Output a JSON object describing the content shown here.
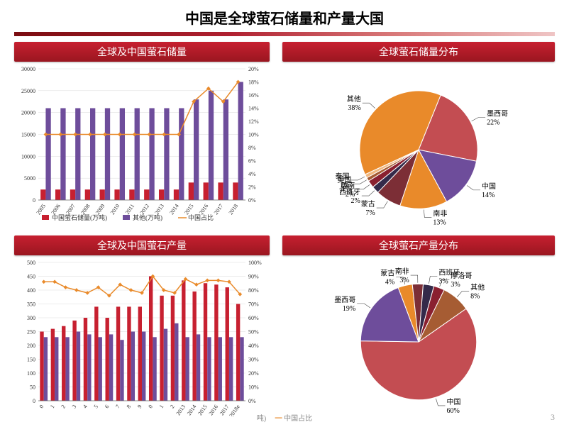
{
  "page_title": "中国是全球萤石储量和产量大国",
  "page_number": "3",
  "footer_legend_tail": "吨)",
  "footer_legend_line": "中国占比",
  "panels": {
    "reserves_bar": {
      "title": "全球及中国萤石储量",
      "type": "bar+line",
      "years": [
        "2005",
        "2006",
        "2007",
        "2008",
        "2009",
        "2010",
        "2011",
        "2012",
        "2013",
        "2014",
        "2015",
        "2016",
        "2017",
        "2018"
      ],
      "china": [
        2400,
        2400,
        2400,
        2400,
        2400,
        2400,
        2400,
        2400,
        2400,
        2400,
        4000,
        4000,
        4000,
        4000
      ],
      "other": [
        21000,
        21000,
        21000,
        21000,
        21000,
        21000,
        21000,
        21000,
        21000,
        21000,
        23000,
        25000,
        23000,
        27000
      ],
      "ratio_pct": [
        10,
        10,
        10,
        10,
        10,
        10,
        10,
        10,
        10,
        10,
        15,
        17,
        15,
        18
      ],
      "y_left": {
        "min": 0,
        "max": 30000,
        "step": 5000
      },
      "y_right": {
        "min": 0,
        "max": 20,
        "step": 2,
        "suffix": "%"
      },
      "colors": {
        "china": "#c72030",
        "other": "#6e4d9b",
        "ratio": "#e98a2a",
        "grid": "#d9d9d9",
        "bg": "#ffffff"
      },
      "legend": [
        "中国萤石储量(万吨)",
        "其他(万吨)",
        "中国占比"
      ],
      "bar_width": 0.35
    },
    "production_bar": {
      "title": "全球及中国萤石产量",
      "type": "bar+line",
      "years": [
        "0",
        "1",
        "2",
        "3",
        "4",
        "5",
        "6",
        "7",
        "8",
        "9",
        "0",
        "1",
        "2",
        "2013",
        "2014",
        "2015",
        "2016",
        "2017",
        "2018e"
      ],
      "china": [
        250,
        260,
        270,
        290,
        300,
        340,
        300,
        340,
        340,
        340,
        450,
        380,
        380,
        435,
        395,
        425,
        420,
        410,
        350
      ],
      "other": [
        230,
        230,
        230,
        250,
        240,
        230,
        240,
        220,
        250,
        250,
        230,
        260,
        280,
        230,
        240,
        230,
        230,
        230,
        230
      ],
      "ratio_pct": [
        86,
        86,
        82,
        80,
        78,
        82,
        76,
        84,
        80,
        78,
        90,
        80,
        78,
        88,
        84,
        87,
        87,
        86,
        77
      ],
      "y_left": {
        "min": 0,
        "max": 500,
        "step": 50
      },
      "y_right": {
        "min": 0,
        "max": 100,
        "step": 10,
        "suffix": "%"
      },
      "colors": {
        "china": "#c72030",
        "other": "#6e4d9b",
        "ratio": "#e98a2a",
        "grid": "#d9d9d9",
        "bg": "#ffffff"
      },
      "bar_width": 0.35
    },
    "reserves_pie": {
      "title": "全球萤石储量分布",
      "type": "pie",
      "slices": [
        {
          "label": "墨西哥",
          "pct": 22,
          "color": "#c34d52"
        },
        {
          "label": "中国",
          "pct": 14,
          "color": "#6e4d9b"
        },
        {
          "label": "南非",
          "pct": 13,
          "color": "#e98a2a"
        },
        {
          "label": "蒙古",
          "pct": 7,
          "color": "#7c2e36"
        },
        {
          "label": "西班牙",
          "pct": 2,
          "color": "#342a4a"
        },
        {
          "label": "越南",
          "pct": 2,
          "color": "#8a2030"
        },
        {
          "label": "美国",
          "pct": 1,
          "color": "#a65c33"
        },
        {
          "label": "泰国",
          "pct": 1,
          "color": "#f0b880"
        },
        {
          "label": "其他",
          "pct": 38,
          "color": "#e98a2a"
        }
      ],
      "start_angle": -68
    },
    "production_pie": {
      "title": "全球萤石产量分布",
      "type": "pie",
      "slices": [
        {
          "label": "中国",
          "pct": 60,
          "color": "#c34d52"
        },
        {
          "label": "墨西哥",
          "pct": 19,
          "color": "#6e4d9b"
        },
        {
          "label": "蒙古",
          "pct": 4,
          "color": "#e98a2a"
        },
        {
          "label": "南非",
          "pct": 3,
          "color": "#7c2e36"
        },
        {
          "label": "西班牙",
          "pct": 3,
          "color": "#342a4a"
        },
        {
          "label": "摩洛哥",
          "pct": 3,
          "color": "#8a2030"
        },
        {
          "label": "其他",
          "pct": 8,
          "color": "#a65c33"
        }
      ],
      "start_angle": -35
    }
  }
}
